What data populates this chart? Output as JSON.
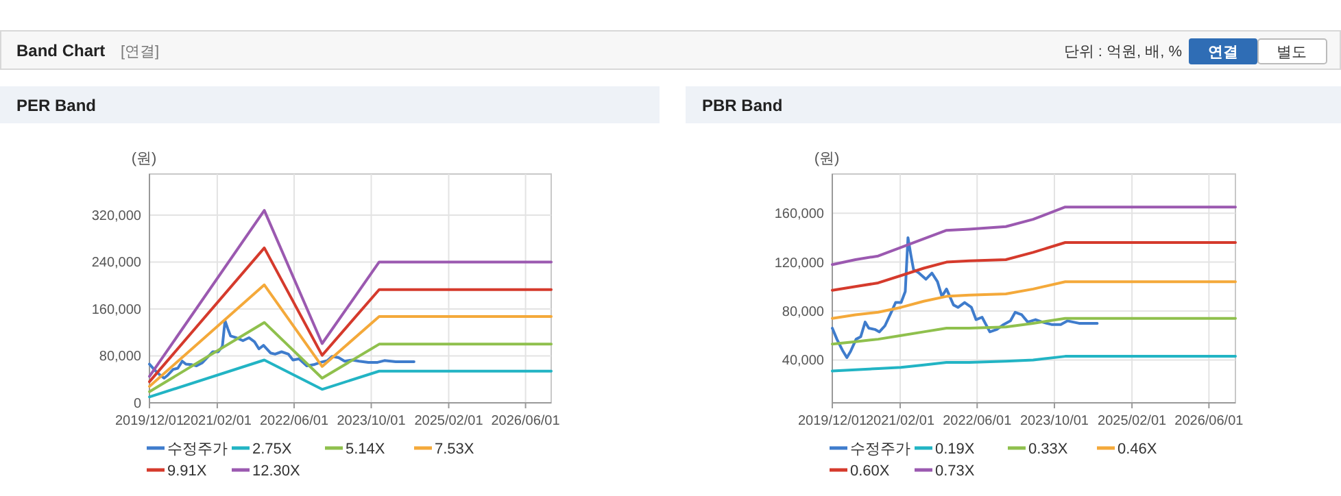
{
  "chart_data": [
    {
      "type": "line",
      "title": "PER Band",
      "ylabel": "(원)",
      "annotations": [
        "Band Chart",
        "[연결]",
        "단위 : 억원, 배, %",
        "연결",
        "별도"
      ],
      "xlim": [
        "2019-12-01",
        "2026-11-10"
      ],
      "ylim": [
        0,
        390000
      ],
      "xticks": [
        {
          "value": "2019-12-01",
          "label": "2019/12/01"
        },
        {
          "value": "2021-02-01",
          "label": "2021/02/01"
        },
        {
          "value": "2022-06-01",
          "label": "2022/06/01"
        },
        {
          "value": "2023-10-01",
          "label": "2023/10/01"
        },
        {
          "value": "2025-02-01",
          "label": "2025/02/01"
        },
        {
          "value": "2026-06-01",
          "label": "2026/06/01"
        }
      ],
      "yticks": [
        0,
        {
          "value": 80000,
          "label": "80,000"
        },
        {
          "value": 160000,
          "label": "160,000"
        },
        {
          "value": 240000,
          "label": "240,000"
        },
        {
          "value": 320000,
          "label": "320,000"
        }
      ],
      "grid": true,
      "legend": "bottom",
      "marker": "none",
      "series": [
        {
          "name": "수정주가",
          "color": "#3f7ccc",
          "x": [
            "2019-12-01",
            "2019-12-30",
            "2020-02-03",
            "2020-03-02",
            "2020-03-25",
            "2020-04-29",
            "2020-05-28",
            "2020-06-25",
            "2020-07-18",
            "2020-08-25",
            "2020-09-23",
            "2020-10-28",
            "2020-12-10",
            "2021-01-03",
            "2021-02-07",
            "2021-03-05",
            "2021-03-22",
            "2021-04-09",
            "2021-04-26",
            "2021-05-31",
            "2021-07-13",
            "2021-08-20",
            "2021-09-24",
            "2021-10-22",
            "2021-11-20",
            "2022-01-03",
            "2022-02-01",
            "2022-03-14",
            "2022-04-26",
            "2022-05-25",
            "2022-07-02",
            "2022-08-20",
            "2022-10-03",
            "2022-11-15",
            "2022-12-28",
            "2023-01-27",
            "2023-03-09",
            "2023-04-16",
            "2023-06-04",
            "2023-07-17",
            "2023-09-13",
            "2023-11-10",
            "2023-12-23",
            "2024-03-04",
            "2024-04-30",
            "2024-06-27"
          ],
          "values": [
            66000,
            57000,
            48000,
            42000,
            47000,
            57000,
            59000,
            71000,
            66000,
            65000,
            63000,
            68000,
            80000,
            87000,
            87000,
            96000,
            140000,
            126000,
            114000,
            111000,
            106000,
            111000,
            104000,
            92000,
            98000,
            85000,
            83000,
            87000,
            83000,
            73000,
            75000,
            63000,
            65000,
            69000,
            72000,
            79000,
            77000,
            71000,
            73000,
            71000,
            69000,
            69000,
            72000,
            70000,
            70000,
            70000
          ]
        },
        {
          "name": "2.75X",
          "color": "#22b4c4",
          "x": [
            "2019-12-01",
            "2021-11-25",
            "2022-11-25",
            "2023-11-20",
            "2026-11-10"
          ],
          "values": [
            10000,
            73000,
            23000,
            54000,
            54000
          ]
        },
        {
          "name": "5.14X",
          "color": "#8fc04d",
          "x": [
            "2019-12-01",
            "2021-11-25",
            "2022-11-25",
            "2023-11-20",
            "2026-11-10"
          ],
          "values": [
            19000,
            137000,
            42000,
            100000,
            100000
          ]
        },
        {
          "name": "7.53X",
          "color": "#f4a93a",
          "x": [
            "2019-12-01",
            "2021-11-25",
            "2022-11-25",
            "2023-11-20",
            "2026-11-10"
          ],
          "values": [
            28000,
            201000,
            62000,
            147000,
            147000
          ]
        },
        {
          "name": "9.91X",
          "color": "#d53a2c",
          "x": [
            "2019-12-01",
            "2021-11-25",
            "2022-11-25",
            "2023-11-20",
            "2026-11-10"
          ],
          "values": [
            36000,
            264000,
            81000,
            193000,
            193000
          ]
        },
        {
          "name": "12.30X",
          "color": "#9b59b0",
          "x": [
            "2019-12-01",
            "2021-11-25",
            "2022-11-25",
            "2023-11-20",
            "2026-11-10"
          ],
          "values": [
            45000,
            328000,
            101000,
            240000,
            240000
          ]
        }
      ]
    },
    {
      "type": "line",
      "title": "PBR Band",
      "ylabel": "(원)",
      "xlim": [
        "2019-12-01",
        "2026-11-15"
      ],
      "ylim": [
        5000,
        192000
      ],
      "xticks": [
        {
          "value": "2019-12-01",
          "label": "2019/12/01"
        },
        {
          "value": "2021-02-01",
          "label": "2021/02/01"
        },
        {
          "value": "2022-06-01",
          "label": "2022/06/01"
        },
        {
          "value": "2023-10-01",
          "label": "2023/10/01"
        },
        {
          "value": "2025-02-01",
          "label": "2025/02/01"
        },
        {
          "value": "2026-06-01",
          "label": "2026/06/01"
        }
      ],
      "yticks": [
        {
          "value": 40000,
          "label": "40,000"
        },
        {
          "value": 80000,
          "label": "80,000"
        },
        {
          "value": 120000,
          "label": "120,000"
        },
        {
          "value": 160000,
          "label": "160,000"
        }
      ],
      "grid": true,
      "legend": "bottom",
      "marker": "none",
      "series": [
        {
          "name": "수정주가",
          "color": "#3f7ccc",
          "x": [
            "2019-12-01",
            "2019-12-30",
            "2020-02-03",
            "2020-03-02",
            "2020-03-25",
            "2020-04-29",
            "2020-05-28",
            "2020-06-25",
            "2020-07-18",
            "2020-08-25",
            "2020-09-23",
            "2020-10-28",
            "2020-12-10",
            "2021-01-03",
            "2021-02-07",
            "2021-03-05",
            "2021-03-22",
            "2021-04-09",
            "2021-04-26",
            "2021-05-31",
            "2021-07-13",
            "2021-08-20",
            "2021-09-24",
            "2021-10-22",
            "2021-11-20",
            "2022-01-03",
            "2022-02-01",
            "2022-03-14",
            "2022-04-26",
            "2022-05-25",
            "2022-07-02",
            "2022-08-20",
            "2022-10-03",
            "2022-11-15",
            "2022-12-28",
            "2023-01-27",
            "2023-03-09",
            "2023-04-16",
            "2023-06-04",
            "2023-07-17",
            "2023-09-13",
            "2023-11-10",
            "2023-12-23",
            "2024-03-04",
            "2024-04-30",
            "2024-06-27"
          ],
          "values": [
            66000,
            57000,
            48000,
            42000,
            47000,
            57000,
            59000,
            71000,
            66000,
            65000,
            63000,
            68000,
            80000,
            87000,
            87000,
            96000,
            140000,
            126000,
            114000,
            111000,
            106000,
            111000,
            104000,
            92000,
            98000,
            85000,
            83000,
            87000,
            83000,
            73000,
            75000,
            63000,
            65000,
            69000,
            72000,
            79000,
            77000,
            71000,
            73000,
            71000,
            69000,
            69000,
            72000,
            70000,
            70000,
            70000
          ]
        },
        {
          "name": "0.19X",
          "color": "#22b4c4",
          "x": [
            "2019-12-01",
            "2020-04-25",
            "2020-09-15",
            "2021-02-06",
            "2021-06-29",
            "2021-11-20",
            "2022-04-12",
            "2022-11-29",
            "2023-05-20",
            "2023-12-08",
            "2026-11-15"
          ],
          "values": [
            31000,
            32000,
            33000,
            34000,
            36000,
            38000,
            38000,
            39000,
            40000,
            43000,
            43000
          ]
        },
        {
          "name": "0.33X",
          "color": "#8fc04d",
          "x": [
            "2019-12-01",
            "2020-04-25",
            "2020-09-15",
            "2021-02-06",
            "2021-06-29",
            "2021-11-20",
            "2022-04-12",
            "2022-11-29",
            "2023-05-20",
            "2023-12-08",
            "2026-11-15"
          ],
          "values": [
            53000,
            55000,
            57000,
            60000,
            63000,
            66000,
            66000,
            67000,
            70000,
            74000,
            74000
          ]
        },
        {
          "name": "0.46X",
          "color": "#f4a93a",
          "x": [
            "2019-12-01",
            "2020-04-25",
            "2020-09-15",
            "2021-02-06",
            "2021-06-29",
            "2021-11-20",
            "2022-04-12",
            "2022-11-29",
            "2023-05-20",
            "2023-12-08",
            "2026-11-15"
          ],
          "values": [
            74000,
            77000,
            79000,
            83000,
            88000,
            92000,
            93000,
            94000,
            98000,
            104000,
            104000
          ]
        },
        {
          "name": "0.60X",
          "color": "#d53a2c",
          "x": [
            "2019-12-01",
            "2020-04-25",
            "2020-09-15",
            "2021-02-06",
            "2021-06-29",
            "2021-11-20",
            "2022-04-12",
            "2022-11-29",
            "2023-05-20",
            "2023-12-08",
            "2026-11-15"
          ],
          "values": [
            97000,
            100000,
            103000,
            109000,
            115000,
            120000,
            121000,
            122000,
            128000,
            136000,
            136000
          ]
        },
        {
          "name": "0.73X",
          "color": "#9b59b0",
          "x": [
            "2019-12-01",
            "2020-04-25",
            "2020-09-15",
            "2021-02-06",
            "2021-06-29",
            "2021-11-20",
            "2022-04-12",
            "2022-11-29",
            "2023-05-20",
            "2023-12-08",
            "2026-11-15"
          ],
          "values": [
            118000,
            122000,
            125000,
            132000,
            139000,
            146000,
            147000,
            149000,
            155000,
            165000,
            165000
          ]
        }
      ]
    }
  ]
}
